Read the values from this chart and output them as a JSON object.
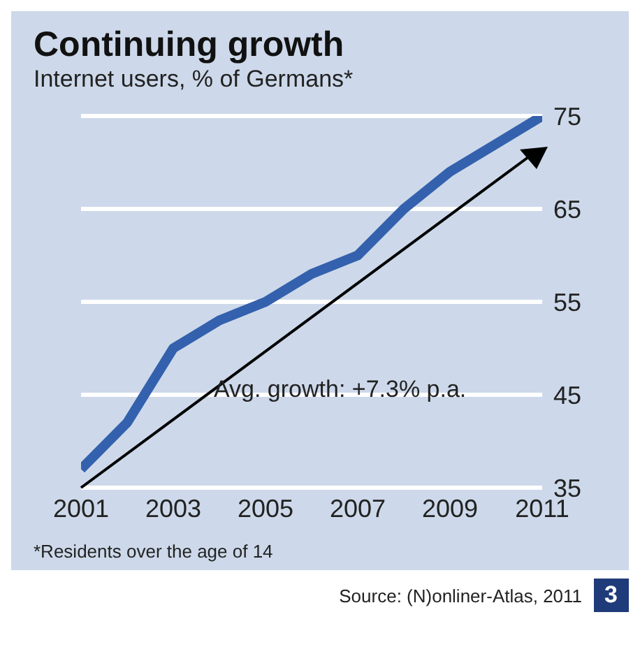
{
  "chart_data": {
    "type": "line",
    "title": "Continuing growth",
    "subtitle": "Internet users, % of Germans*",
    "x": [
      2001,
      2002,
      2003,
      2004,
      2005,
      2006,
      2007,
      2008,
      2009,
      2010,
      2011
    ],
    "series": [
      {
        "color": "#3461ad",
        "values": [
          37,
          42,
          50,
          53,
          55,
          58,
          60,
          65,
          69,
          72,
          75
        ]
      }
    ],
    "xlim": [
      2001,
      2011
    ],
    "xticks": [
      2001,
      2003,
      2005,
      2007,
      2009,
      2011
    ],
    "ylim": [
      35,
      75
    ],
    "yticks": [
      35,
      45,
      55,
      65,
      75
    ],
    "grid": "y",
    "annotations": [
      "Avg. growth: +7.3% p.a.",
      "*Residents over the age of 14",
      "Source: (N)onliner-Atlas, 2011",
      "3"
    ]
  }
}
